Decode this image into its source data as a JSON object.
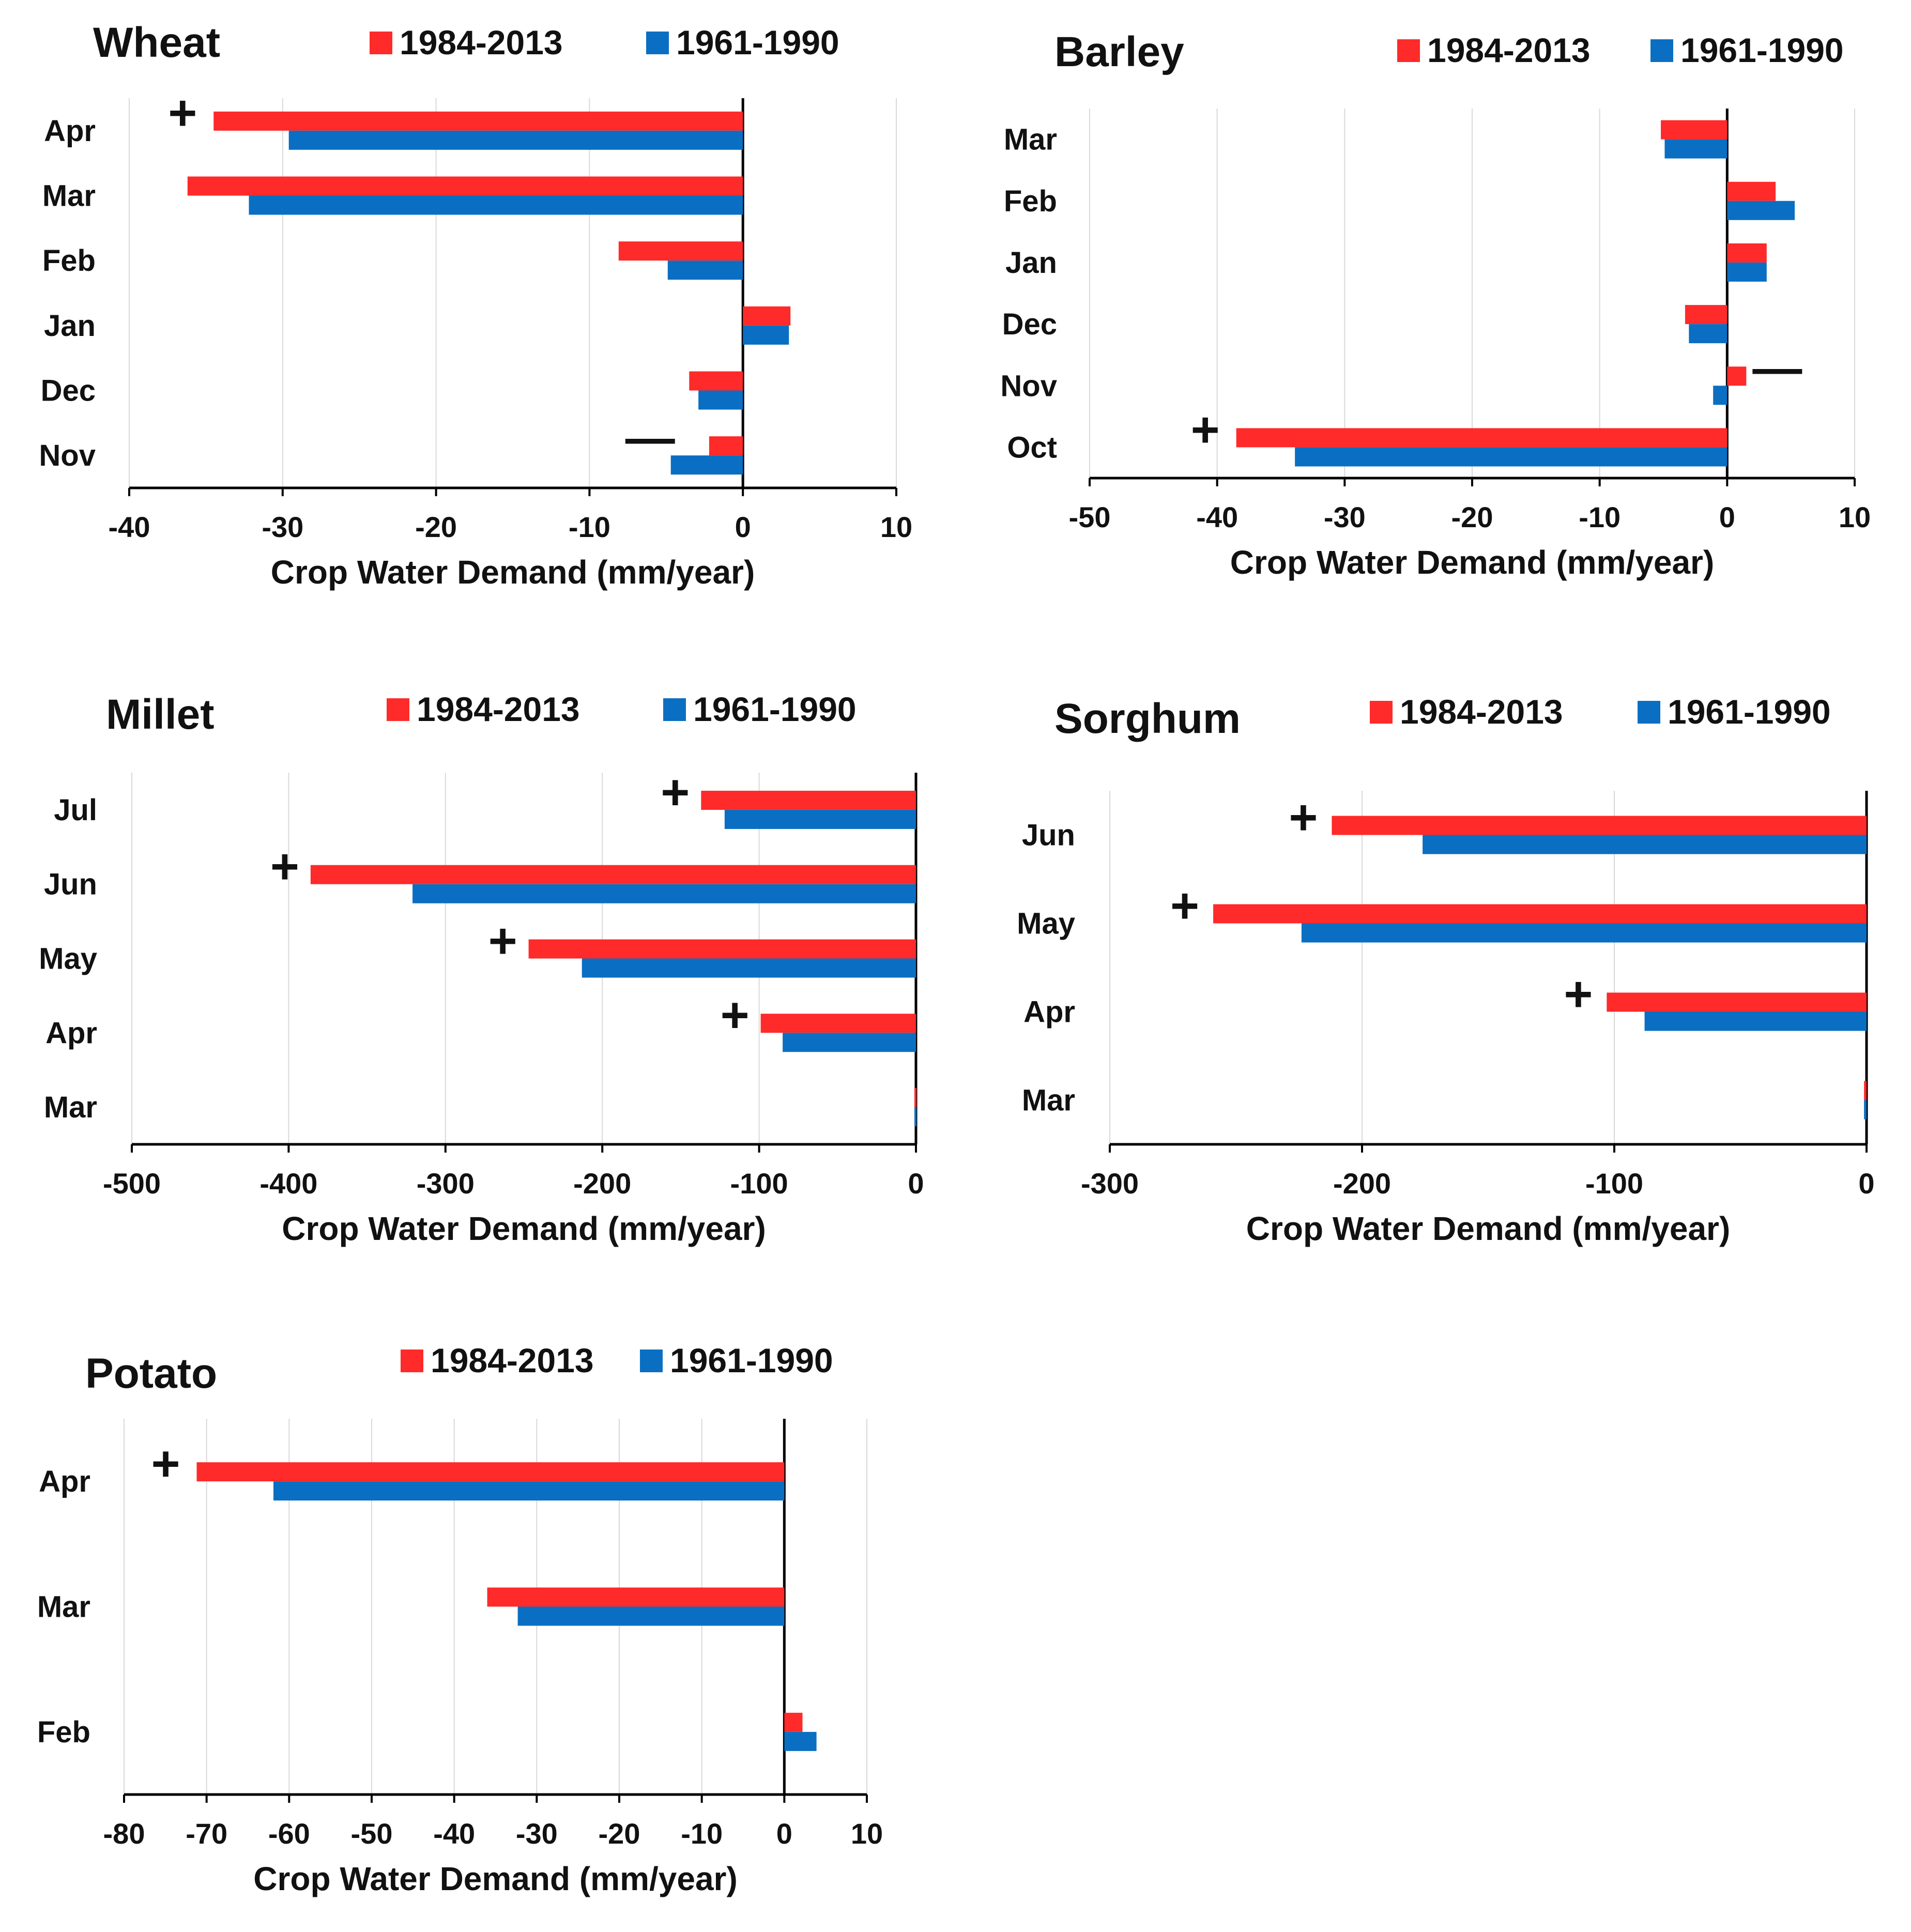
{
  "colors": {
    "recent": "#ff2a2a",
    "baseline": "#0a6fc2"
  },
  "chart_data": [
    {
      "type": "bar",
      "orientation": "horizontal",
      "title": "Wheat",
      "xlabel": "Crop Water Demand (mm/year)",
      "xlim": [
        -40,
        10
      ],
      "xticks": [
        "-40",
        "-30",
        "-20",
        "-10",
        "0",
        "10"
      ],
      "categories": [
        "Apr",
        "Mar",
        "Feb",
        "Jan",
        "Dec",
        "Nov"
      ],
      "series": [
        {
          "name": "1984-2013",
          "values": [
            -34.5,
            -36.2,
            -8.1,
            3.1,
            -3.5,
            -2.2
          ]
        },
        {
          "name": "1961-1990",
          "values": [
            -29.6,
            -32.2,
            -4.9,
            3.0,
            -2.9,
            -4.7
          ]
        }
      ],
      "annotations": [
        "+",
        "",
        "",
        "",
        "",
        "—"
      ]
    },
    {
      "type": "bar",
      "orientation": "horizontal",
      "title": "Barley",
      "xlabel": "Crop Water Demand (mm/year)",
      "xlim": [
        -50,
        10
      ],
      "xticks": [
        "-50",
        "-40",
        "-30",
        "-20",
        "-10",
        "0",
        "10"
      ],
      "categories": [
        "Mar",
        "Feb",
        "Jan",
        "Dec",
        "Nov",
        "Oct"
      ],
      "series": [
        {
          "name": "1984-2013",
          "values": [
            -5.2,
            3.8,
            3.1,
            -3.3,
            1.5,
            -38.5
          ]
        },
        {
          "name": "1961-1990",
          "values": [
            -4.9,
            5.3,
            3.1,
            -3.0,
            -1.1,
            -33.9
          ]
        }
      ],
      "annotations": [
        "",
        "",
        "",
        "",
        "—",
        "+"
      ]
    },
    {
      "type": "bar",
      "orientation": "horizontal",
      "title": "Millet",
      "xlabel": "Crop Water Demand (mm/year)",
      "xlim": [
        -500,
        0
      ],
      "xticks": [
        "-500",
        "-400",
        "-300",
        "-200",
        "-100",
        "0"
      ],
      "categories": [
        "Jul",
        "Jun",
        "May",
        "Apr",
        "Mar"
      ],
      "series": [
        {
          "name": "1984-2013",
          "values": [
            -137,
            -386,
            -247,
            -99,
            -1
          ]
        },
        {
          "name": "1961-1990",
          "values": [
            -122,
            -321,
            -213,
            -85,
            -1
          ]
        }
      ],
      "annotations": [
        "+",
        "+",
        "+",
        "+",
        ""
      ]
    },
    {
      "type": "bar",
      "orientation": "horizontal",
      "title": "Sorghum",
      "xlabel": "Crop Water Demand (mm/year)",
      "xlim": [
        -300,
        0
      ],
      "xticks": [
        "-300",
        "-200",
        "-100",
        "0"
      ],
      "categories": [
        "Jun",
        "May",
        "Apr",
        "Mar"
      ],
      "series": [
        {
          "name": "1984-2013",
          "values": [
            -212,
            -259,
            -103,
            -1
          ]
        },
        {
          "name": "1961-1990",
          "values": [
            -176,
            -224,
            -88,
            -1
          ]
        }
      ],
      "annotations": [
        "+",
        "+",
        "+",
        ""
      ]
    },
    {
      "type": "bar",
      "orientation": "horizontal",
      "title": "Potato",
      "xlabel": "Crop Water Demand (mm/year)",
      "xlim": [
        -80,
        10
      ],
      "xticks": [
        "-80",
        "-70",
        "-60",
        "-50",
        "-40",
        "-30",
        "-20",
        "-10",
        "0",
        "10"
      ],
      "categories": [
        "Apr",
        "Mar",
        "Feb"
      ],
      "series": [
        {
          "name": "1984-2013",
          "values": [
            -71.2,
            -36.0,
            2.2
          ]
        },
        {
          "name": "1961-1990",
          "values": [
            -61.9,
            -32.3,
            3.9
          ]
        }
      ],
      "annotations": [
        "+",
        "",
        ""
      ]
    }
  ]
}
